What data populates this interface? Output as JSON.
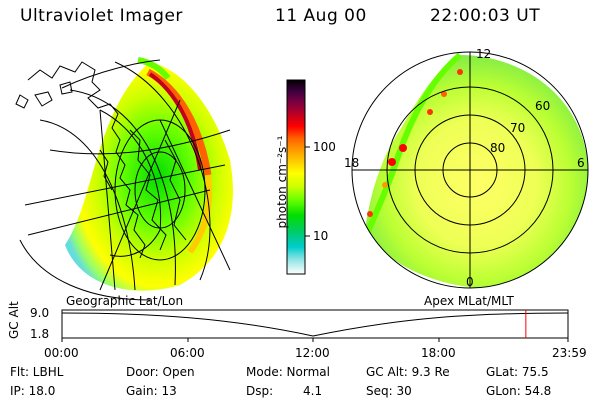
{
  "header": {
    "title": "Ultraviolet Imager",
    "date": "11 Aug 00",
    "time": "22:00:03 UT"
  },
  "panels": {
    "left_label": "Geographic Lat/Lon",
    "right_label": "Apex MLat/MLT"
  },
  "colorbar": {
    "unit_label": "photon cm⁻²s⁻¹",
    "ticks": [
      "100",
      "10"
    ],
    "colors": [
      "#000000",
      "#400040",
      "#800040",
      "#c00020",
      "#ff0000",
      "#ff6000",
      "#ff9900",
      "#ffcc00",
      "#ffff00",
      "#ccff00",
      "#66ff00",
      "#00dd00",
      "#00cc66",
      "#00cccc",
      "#66dddd",
      "#cceeee",
      "#ffffff"
    ]
  },
  "polar": {
    "ring_labels": [
      "80",
      "70",
      "60"
    ],
    "mlt_labels": {
      "top": "12",
      "left": "18",
      "right": "6",
      "bottom": "0"
    }
  },
  "timeline": {
    "axis_label": "GC Alt",
    "y_ticks": [
      "9.0",
      "1.8"
    ],
    "x_ticks": [
      "00:00",
      "06:00",
      "12:00",
      "18:00",
      "23:59"
    ],
    "marker_time_fraction": 0.9167
  },
  "status": {
    "flt": "Flt: LBHL",
    "door": "Door: Open",
    "mode": "Mode: Normal",
    "gc_alt": "GC Alt: 9.3 Re",
    "glat": "GLat: 75.5",
    "ip": "IP: 18.0",
    "gain": "Gain: 13",
    "dsp_label": "Dsp:",
    "dsp_value": "4.1",
    "seq": "Seq: 30",
    "glon": "GLon:  54.8"
  }
}
